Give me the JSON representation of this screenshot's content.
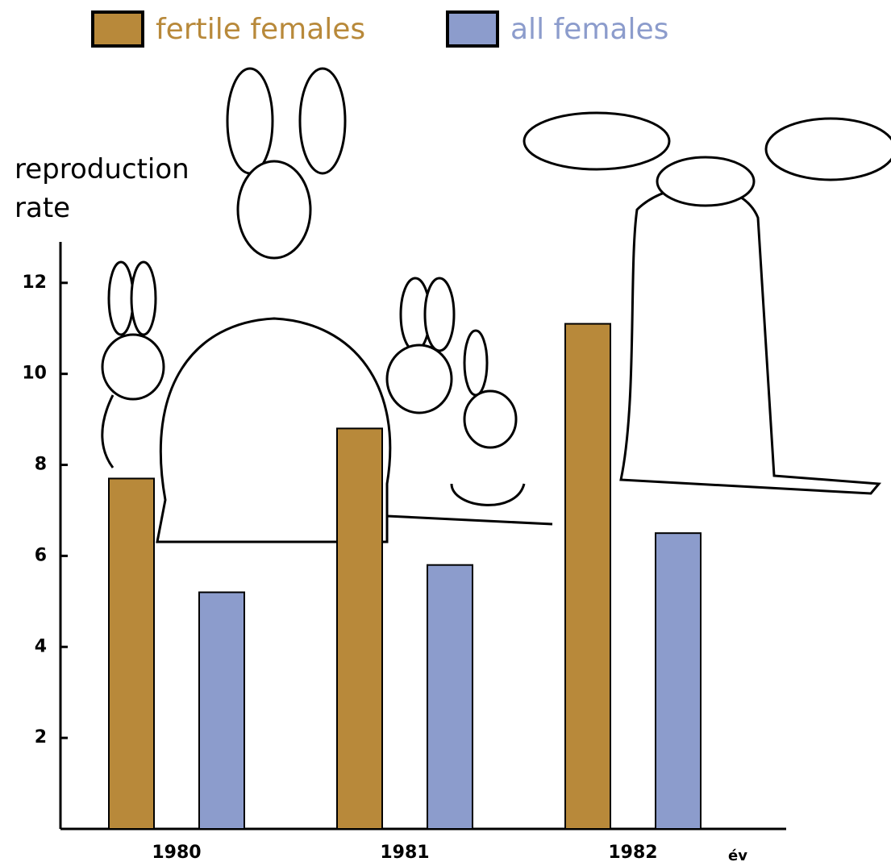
{
  "chart_data": {
    "type": "bar",
    "y_label": "reproduction rate",
    "x_label": "év",
    "categories": [
      "1980",
      "1981",
      "1982"
    ],
    "series": [
      {
        "name": "fertile females",
        "color": "#b8893a",
        "values": [
          7.7,
          8.8,
          11.1
        ]
      },
      {
        "name": "all females",
        "color": "#8c9ccc",
        "values": [
          5.2,
          5.8,
          6.5
        ]
      }
    ],
    "ylim": [
      0,
      12.9
    ],
    "yticks": [
      2,
      4,
      6,
      8,
      10,
      12
    ]
  }
}
